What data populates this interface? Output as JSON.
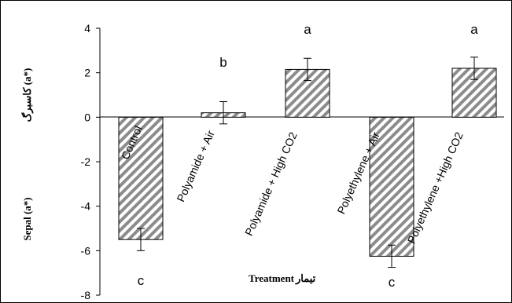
{
  "chart_data": {
    "type": "bar",
    "categories": [
      "Control",
      "Polyamide + Air",
      "Polyamide + High CO2",
      "Polyethylene + Air",
      "Polyethylene +High CO2"
    ],
    "series": [
      {
        "values": [
          -5.5,
          0.2,
          2.15,
          -6.25,
          2.2
        ],
        "errors": [
          0.5,
          0.5,
          0.5,
          0.5,
          0.5
        ],
        "significance": [
          "c",
          "b",
          "a",
          "c",
          "a"
        ]
      }
    ],
    "ylabel_en": "Sepal (a*)",
    "ylabel_fa": "کاسبرگ (a*)",
    "xlabel_en": "Treatment",
    "xlabel_fa": "تیمار",
    "ylim": [
      -8,
      4
    ],
    "yticks": [
      -8,
      -6,
      -4,
      -2,
      0,
      2,
      4
    ],
    "grid": false,
    "legend": "none",
    "bar_fill": "hatched diagonal gray",
    "colors": {
      "hatch": "#8c8c8c",
      "outline": "#000000",
      "background": "#ffffff"
    }
  }
}
